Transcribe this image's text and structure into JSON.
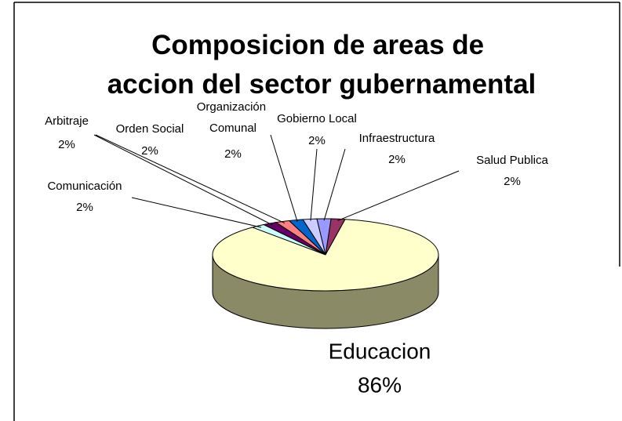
{
  "chart_data": {
    "type": "pie",
    "title": "Composicion de areas de accion del sector gubernamental",
    "categories": [
      "Salud Publica",
      "Infraestructura",
      "Gobierno Local",
      "Organización Comunal",
      "Orden Social",
      "Arbitraje",
      "Comunicación",
      "Educacion"
    ],
    "values": [
      2,
      2,
      2,
      2,
      2,
      2,
      2,
      86
    ],
    "value_labels": [
      "2%",
      "2%",
      "2%",
      "2%",
      "2%",
      "2%",
      "2%",
      "86%"
    ],
    "colors": [
      "#993366",
      "#9999ff",
      "#ccccff",
      "#0066cc",
      "#ff8080",
      "#660066",
      "#ccffff",
      "#ffffcc"
    ]
  }
}
